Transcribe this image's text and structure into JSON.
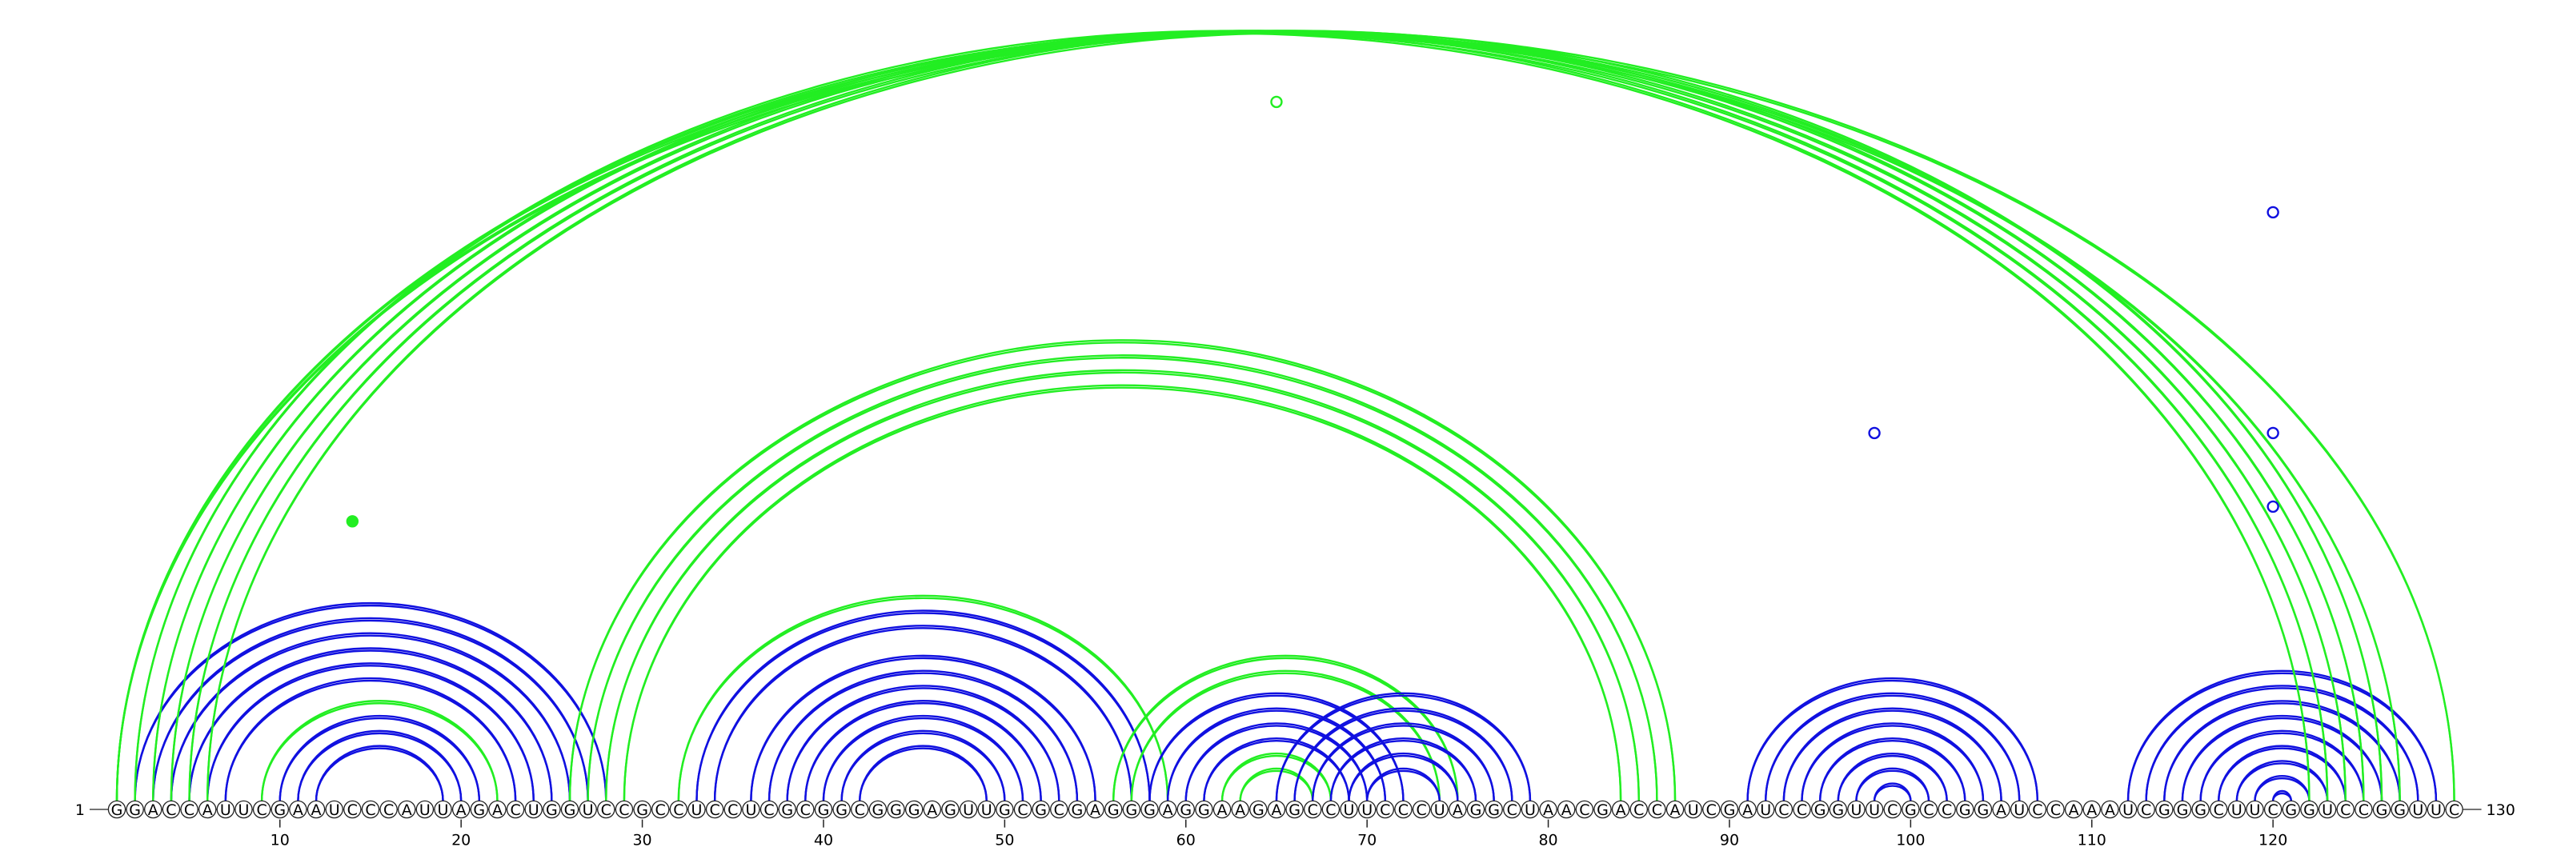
{
  "diagram": {
    "type": "rna-arc-diagram",
    "sequence": "GGACCAUUCGAAUCCCAUUAGACUGGUCCGCCUCCUCGCGGCGGGAGUUGCGCGAGGGAGGAAGAGCCUUCCCUAGGCUAACGACCAUCGAUCCGGUUCGCCGGAUCCAAAUCGGGCUUCGGUCCGGUUC",
    "start_label": "1",
    "end_label": "130",
    "tick_labels": [
      "10",
      "20",
      "30",
      "40",
      "50",
      "60",
      "70",
      "80",
      "90",
      "100",
      "110",
      "120"
    ],
    "colors": {
      "blue": "#1010e0",
      "green": "#22ee22",
      "outline": "#222222"
    },
    "arcs": [
      {
        "i": 2,
        "j": 28,
        "color": "blue"
      },
      {
        "i": 3,
        "j": 27,
        "color": "blue"
      },
      {
        "i": 4,
        "j": 26,
        "color": "blue"
      },
      {
        "i": 5,
        "j": 25,
        "color": "blue"
      },
      {
        "i": 6,
        "j": 24,
        "color": "blue"
      },
      {
        "i": 7,
        "j": 23,
        "color": "blue"
      },
      {
        "i": 9,
        "j": 22,
        "color": "green"
      },
      {
        "i": 10,
        "j": 21,
        "color": "blue"
      },
      {
        "i": 11,
        "j": 20,
        "color": "blue"
      },
      {
        "i": 12,
        "j": 19,
        "color": "blue"
      },
      {
        "i": 32,
        "j": 59,
        "color": "green"
      },
      {
        "i": 33,
        "j": 58,
        "color": "blue"
      },
      {
        "i": 34,
        "j": 57,
        "color": "blue"
      },
      {
        "i": 36,
        "j": 55,
        "color": "blue"
      },
      {
        "i": 37,
        "j": 54,
        "color": "blue"
      },
      {
        "i": 38,
        "j": 53,
        "color": "blue"
      },
      {
        "i": 39,
        "j": 52,
        "color": "blue"
      },
      {
        "i": 40,
        "j": 51,
        "color": "blue"
      },
      {
        "i": 41,
        "j": 50,
        "color": "blue"
      },
      {
        "i": 42,
        "j": 49,
        "color": "blue"
      },
      {
        "i": 56,
        "j": 75,
        "color": "green"
      },
      {
        "i": 57,
        "j": 74,
        "color": "green"
      },
      {
        "i": 58,
        "j": 72,
        "color": "blue"
      },
      {
        "i": 59,
        "j": 71,
        "color": "blue"
      },
      {
        "i": 60,
        "j": 70,
        "color": "blue"
      },
      {
        "i": 61,
        "j": 69,
        "color": "blue"
      },
      {
        "i": 62,
        "j": 68,
        "color": "green"
      },
      {
        "i": 63,
        "j": 67,
        "color": "green"
      },
      {
        "i": 65,
        "j": 79,
        "color": "blue"
      },
      {
        "i": 66,
        "j": 78,
        "color": "blue"
      },
      {
        "i": 67,
        "j": 77,
        "color": "blue"
      },
      {
        "i": 68,
        "j": 76,
        "color": "blue"
      },
      {
        "i": 69,
        "j": 75,
        "color": "blue"
      },
      {
        "i": 70,
        "j": 74,
        "color": "blue"
      },
      {
        "i": 91,
        "j": 107,
        "color": "blue"
      },
      {
        "i": 92,
        "j": 106,
        "color": "blue"
      },
      {
        "i": 93,
        "j": 105,
        "color": "blue"
      },
      {
        "i": 94,
        "j": 104,
        "color": "blue"
      },
      {
        "i": 95,
        "j": 103,
        "color": "blue"
      },
      {
        "i": 96,
        "j": 102,
        "color": "blue"
      },
      {
        "i": 97,
        "j": 101,
        "color": "blue"
      },
      {
        "i": 98,
        "j": 100,
        "color": "blue"
      },
      {
        "i": 112,
        "j": 129,
        "color": "blue"
      },
      {
        "i": 113,
        "j": 128,
        "color": "blue"
      },
      {
        "i": 114,
        "j": 127,
        "color": "blue"
      },
      {
        "i": 115,
        "j": 126,
        "color": "blue"
      },
      {
        "i": 116,
        "j": 125,
        "color": "blue"
      },
      {
        "i": 117,
        "j": 124,
        "color": "blue"
      },
      {
        "i": 118,
        "j": 123,
        "color": "blue"
      },
      {
        "i": 119,
        "j": 122,
        "color": "blue"
      },
      {
        "i": 120,
        "j": 121,
        "color": "blue"
      },
      {
        "i": 2,
        "j": 122,
        "color": "green"
      },
      {
        "i": 3,
        "j": 123,
        "color": "green"
      },
      {
        "i": 4,
        "j": 124,
        "color": "green"
      },
      {
        "i": 5,
        "j": 125,
        "color": "green"
      },
      {
        "i": 6,
        "j": 126,
        "color": "green"
      },
      {
        "i": 1,
        "j": 130,
        "color": "green"
      },
      {
        "i": 1,
        "j": 127,
        "color": "green"
      },
      {
        "i": 26,
        "j": 87,
        "color": "green"
      },
      {
        "i": 27,
        "j": 86,
        "color": "green"
      },
      {
        "i": 28,
        "j": 85,
        "color": "green"
      },
      {
        "i": 29,
        "j": 84,
        "color": "green"
      }
    ],
    "markers": [
      {
        "pos": 14,
        "level": 0.38,
        "color": "green",
        "filled": true
      },
      {
        "pos": 65,
        "level": 0.95,
        "color": "green",
        "filled": false
      },
      {
        "pos": 98,
        "level": 0.5,
        "color": "blue",
        "filled": false
      },
      {
        "pos": 120,
        "level": 0.5,
        "color": "blue",
        "filled": false
      },
      {
        "pos": 120,
        "level": 0.4,
        "color": "blue",
        "filled": false
      },
      {
        "pos": 120,
        "level": 0.8,
        "color": "blue",
        "filled": false
      }
    ]
  }
}
